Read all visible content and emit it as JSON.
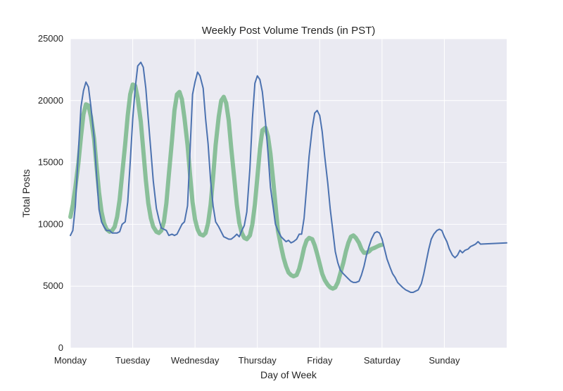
{
  "chart_data": {
    "type": "line",
    "title": "Weekly Post Volume Trends (in PST)",
    "xlabel": "Day of Week",
    "ylabel": "Total Posts",
    "ylim": [
      0,
      25000
    ],
    "xlim": [
      0,
      7
    ],
    "yticks": [
      0,
      5000,
      10000,
      15000,
      20000,
      25000
    ],
    "xtick_labels": [
      "Monday",
      "Tuesday",
      "Wednesday",
      "Thursday",
      "Friday",
      "Saturday",
      "Sunday"
    ],
    "grid": true,
    "legend": "none",
    "colors": {
      "raw": "#4c72b0",
      "smooth": "#55a868",
      "background": "#eaeaf2",
      "grid": "#ffffff"
    },
    "series": [
      {
        "style": "raw",
        "points": [
          [
            0.0,
            9100
          ],
          [
            0.04,
            9500
          ],
          [
            0.08,
            11500
          ],
          [
            0.13,
            16000
          ],
          [
            0.17,
            19500
          ],
          [
            0.21,
            20800
          ],
          [
            0.25,
            21500
          ],
          [
            0.29,
            21100
          ],
          [
            0.33,
            19500
          ],
          [
            0.38,
            17000
          ],
          [
            0.42,
            14000
          ],
          [
            0.46,
            11200
          ],
          [
            0.5,
            10200
          ],
          [
            0.54,
            9800
          ],
          [
            0.58,
            9500
          ],
          [
            0.63,
            9500
          ],
          [
            0.67,
            9300
          ],
          [
            0.71,
            9300
          ],
          [
            0.75,
            9300
          ],
          [
            0.79,
            9400
          ],
          [
            0.83,
            10000
          ],
          [
            0.88,
            10200
          ],
          [
            0.92,
            11800
          ],
          [
            0.96,
            15000
          ],
          [
            1.0,
            18500
          ],
          [
            1.04,
            21000
          ],
          [
            1.08,
            22800
          ],
          [
            1.13,
            23100
          ],
          [
            1.17,
            22700
          ],
          [
            1.21,
            21000
          ],
          [
            1.25,
            18500
          ],
          [
            1.29,
            16000
          ],
          [
            1.33,
            13500
          ],
          [
            1.38,
            11300
          ],
          [
            1.42,
            10400
          ],
          [
            1.46,
            9700
          ],
          [
            1.5,
            9600
          ],
          [
            1.54,
            9500
          ],
          [
            1.58,
            9100
          ],
          [
            1.63,
            9200
          ],
          [
            1.67,
            9100
          ],
          [
            1.71,
            9200
          ],
          [
            1.75,
            9600
          ],
          [
            1.79,
            10000
          ],
          [
            1.83,
            10200
          ],
          [
            1.88,
            11500
          ],
          [
            1.92,
            16000
          ],
          [
            1.96,
            20500
          ],
          [
            2.0,
            21500
          ],
          [
            2.04,
            22300
          ],
          [
            2.08,
            22000
          ],
          [
            2.13,
            21000
          ],
          [
            2.17,
            18500
          ],
          [
            2.21,
            16500
          ],
          [
            2.25,
            13500
          ],
          [
            2.29,
            11500
          ],
          [
            2.33,
            10200
          ],
          [
            2.38,
            9800
          ],
          [
            2.42,
            9400
          ],
          [
            2.46,
            9000
          ],
          [
            2.5,
            8900
          ],
          [
            2.54,
            8800
          ],
          [
            2.58,
            8800
          ],
          [
            2.63,
            9000
          ],
          [
            2.67,
            9200
          ],
          [
            2.71,
            9000
          ],
          [
            2.75,
            9500
          ],
          [
            2.79,
            9900
          ],
          [
            2.83,
            11000
          ],
          [
            2.88,
            14500
          ],
          [
            2.92,
            18500
          ],
          [
            2.96,
            21400
          ],
          [
            3.0,
            22000
          ],
          [
            3.04,
            21700
          ],
          [
            3.08,
            20700
          ],
          [
            3.13,
            18300
          ],
          [
            3.17,
            15800
          ],
          [
            3.21,
            13000
          ],
          [
            3.25,
            11500
          ],
          [
            3.29,
            10000
          ],
          [
            3.33,
            9500
          ],
          [
            3.38,
            9000
          ],
          [
            3.42,
            8800
          ],
          [
            3.46,
            8600
          ],
          [
            3.5,
            8700
          ],
          [
            3.54,
            8500
          ],
          [
            3.58,
            8600
          ],
          [
            3.63,
            8800
          ],
          [
            3.67,
            9200
          ],
          [
            3.71,
            9200
          ],
          [
            3.75,
            10500
          ],
          [
            3.79,
            13000
          ],
          [
            3.83,
            15500
          ],
          [
            3.88,
            17800
          ],
          [
            3.92,
            19000
          ],
          [
            3.96,
            19200
          ],
          [
            4.0,
            18800
          ],
          [
            4.04,
            17500
          ],
          [
            4.08,
            15500
          ],
          [
            4.13,
            13300
          ],
          [
            4.17,
            11200
          ],
          [
            4.21,
            9500
          ],
          [
            4.25,
            7800
          ],
          [
            4.29,
            6900
          ],
          [
            4.33,
            6300
          ],
          [
            4.38,
            6000
          ],
          [
            4.42,
            5800
          ],
          [
            4.46,
            5600
          ],
          [
            4.5,
            5400
          ],
          [
            4.54,
            5300
          ],
          [
            4.58,
            5300
          ],
          [
            4.63,
            5400
          ],
          [
            4.67,
            5900
          ],
          [
            4.71,
            6600
          ],
          [
            4.75,
            7500
          ],
          [
            4.79,
            8200
          ],
          [
            4.83,
            8800
          ],
          [
            4.88,
            9300
          ],
          [
            4.92,
            9400
          ],
          [
            4.96,
            9300
          ],
          [
            5.0,
            8800
          ],
          [
            5.04,
            8000
          ],
          [
            5.08,
            7200
          ],
          [
            5.13,
            6500
          ],
          [
            5.17,
            6000
          ],
          [
            5.21,
            5700
          ],
          [
            5.25,
            5300
          ],
          [
            5.29,
            5100
          ],
          [
            5.33,
            4900
          ],
          [
            5.38,
            4700
          ],
          [
            5.42,
            4600
          ],
          [
            5.46,
            4500
          ],
          [
            5.5,
            4500
          ],
          [
            5.54,
            4600
          ],
          [
            5.58,
            4700
          ],
          [
            5.63,
            5200
          ],
          [
            5.67,
            6000
          ],
          [
            5.71,
            7000
          ],
          [
            5.75,
            8000
          ],
          [
            5.79,
            8800
          ],
          [
            5.83,
            9200
          ],
          [
            5.88,
            9500
          ],
          [
            5.92,
            9600
          ],
          [
            5.96,
            9500
          ],
          [
            6.0,
            9000
          ],
          [
            6.04,
            8600
          ],
          [
            6.08,
            8000
          ],
          [
            6.13,
            7500
          ],
          [
            6.17,
            7300
          ],
          [
            6.21,
            7500
          ],
          [
            6.25,
            7900
          ],
          [
            6.29,
            7700
          ],
          [
            6.33,
            7900
          ],
          [
            6.38,
            8000
          ],
          [
            6.42,
            8200
          ],
          [
            6.46,
            8300
          ],
          [
            6.5,
            8400
          ],
          [
            6.54,
            8600
          ],
          [
            6.58,
            8400
          ],
          [
            7.0,
            8500
          ]
        ]
      },
      {
        "style": "smooth",
        "points": [
          [
            0.0,
            10600
          ],
          [
            0.04,
            11600
          ],
          [
            0.08,
            13000
          ],
          [
            0.13,
            15000
          ],
          [
            0.17,
            17100
          ],
          [
            0.21,
            18900
          ],
          [
            0.25,
            19700
          ],
          [
            0.29,
            19600
          ],
          [
            0.33,
            18700
          ],
          [
            0.38,
            16900
          ],
          [
            0.42,
            14700
          ],
          [
            0.46,
            12600
          ],
          [
            0.5,
            11000
          ],
          [
            0.54,
            10100
          ],
          [
            0.58,
            9600
          ],
          [
            0.63,
            9400
          ],
          [
            0.67,
            9500
          ],
          [
            0.71,
            9800
          ],
          [
            0.75,
            10600
          ],
          [
            0.79,
            12000
          ],
          [
            0.83,
            14000
          ],
          [
            0.88,
            16500
          ],
          [
            0.92,
            18800
          ],
          [
            0.96,
            20500
          ],
          [
            1.0,
            21300
          ],
          [
            1.04,
            21200
          ],
          [
            1.08,
            20200
          ],
          [
            1.13,
            18300
          ],
          [
            1.17,
            16000
          ],
          [
            1.21,
            13600
          ],
          [
            1.25,
            11700
          ],
          [
            1.29,
            10500
          ],
          [
            1.33,
            9800
          ],
          [
            1.38,
            9400
          ],
          [
            1.42,
            9300
          ],
          [
            1.46,
            9500
          ],
          [
            1.5,
            10200
          ],
          [
            1.54,
            11700
          ],
          [
            1.58,
            14000
          ],
          [
            1.63,
            16800
          ],
          [
            1.67,
            19200
          ],
          [
            1.71,
            20500
          ],
          [
            1.75,
            20700
          ],
          [
            1.79,
            20100
          ],
          [
            1.83,
            18600
          ],
          [
            1.88,
            16400
          ],
          [
            1.92,
            14000
          ],
          [
            1.96,
            11800
          ],
          [
            2.0,
            10400
          ],
          [
            2.04,
            9600
          ],
          [
            2.08,
            9200
          ],
          [
            2.13,
            9100
          ],
          [
            2.17,
            9300
          ],
          [
            2.21,
            10100
          ],
          [
            2.25,
            11600
          ],
          [
            2.29,
            13800
          ],
          [
            2.33,
            16400
          ],
          [
            2.38,
            18700
          ],
          [
            2.42,
            20000
          ],
          [
            2.46,
            20300
          ],
          [
            2.5,
            19800
          ],
          [
            2.54,
            18400
          ],
          [
            2.58,
            16200
          ],
          [
            2.63,
            13700
          ],
          [
            2.67,
            11600
          ],
          [
            2.71,
            10100
          ],
          [
            2.75,
            9300
          ],
          [
            2.79,
            8900
          ],
          [
            2.83,
            8800
          ],
          [
            2.88,
            9100
          ],
          [
            2.92,
            10000
          ],
          [
            2.96,
            11600
          ],
          [
            3.0,
            13800
          ],
          [
            3.04,
            16100
          ],
          [
            3.08,
            17600
          ],
          [
            3.13,
            17800
          ],
          [
            3.17,
            17100
          ],
          [
            3.21,
            15700
          ],
          [
            3.25,
            13700
          ],
          [
            3.29,
            11600
          ],
          [
            3.33,
            9500
          ],
          [
            3.38,
            8200
          ],
          [
            3.42,
            7300
          ],
          [
            3.46,
            6600
          ],
          [
            3.5,
            6100
          ],
          [
            3.54,
            5900
          ],
          [
            3.58,
            5800
          ],
          [
            3.63,
            5900
          ],
          [
            3.67,
            6400
          ],
          [
            3.71,
            7200
          ],
          [
            3.75,
            8100
          ],
          [
            3.79,
            8700
          ],
          [
            3.83,
            8900
          ],
          [
            3.88,
            8800
          ],
          [
            3.92,
            8300
          ],
          [
            3.96,
            7600
          ],
          [
            4.0,
            6800
          ],
          [
            4.04,
            6000
          ],
          [
            4.08,
            5500
          ],
          [
            4.13,
            5100
          ],
          [
            4.17,
            4900
          ],
          [
            4.21,
            4800
          ],
          [
            4.25,
            4900
          ],
          [
            4.29,
            5300
          ],
          [
            4.33,
            6000
          ],
          [
            4.38,
            6900
          ],
          [
            4.42,
            7800
          ],
          [
            4.46,
            8500
          ],
          [
            4.5,
            9000
          ],
          [
            4.54,
            9100
          ],
          [
            4.58,
            8900
          ],
          [
            4.63,
            8500
          ],
          [
            4.67,
            8000
          ],
          [
            4.71,
            7700
          ],
          [
            4.75,
            7700
          ],
          [
            4.79,
            7800
          ],
          [
            4.83,
            8000
          ],
          [
            4.88,
            8100
          ],
          [
            4.92,
            8200
          ],
          [
            4.96,
            8300
          ],
          [
            5.0,
            8350
          ]
        ]
      }
    ]
  }
}
